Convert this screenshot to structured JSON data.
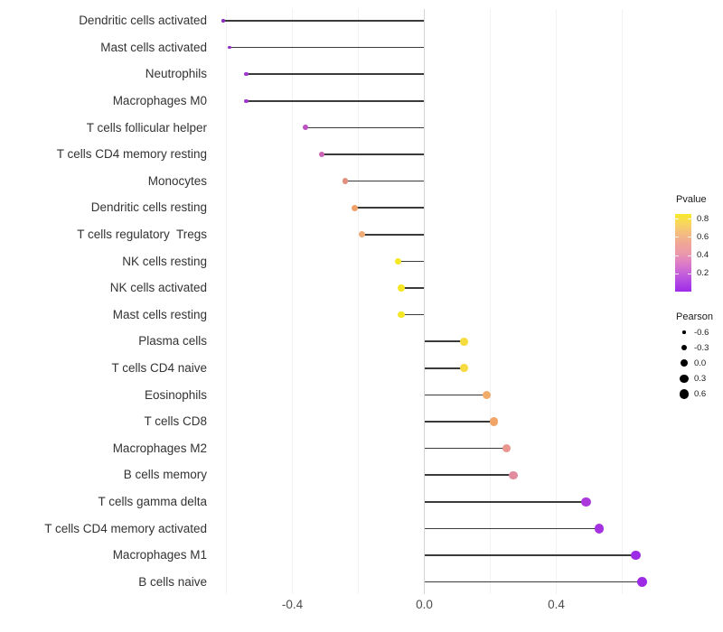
{
  "chart_data": {
    "type": "scatter",
    "variant": "horizontal-lollipop",
    "title": "",
    "xlabel": "",
    "ylabel": "",
    "xlim": [
      -0.637,
      0.681
    ],
    "x_tick_labels": [
      "-0.4",
      "0.0",
      "0.4"
    ],
    "x_tick_values": [
      -0.4,
      0.0,
      0.4
    ],
    "gridline_values": [
      -0.6,
      -0.4,
      -0.2,
      0.2,
      0.4,
      0.6
    ],
    "zero_line_value": 0,
    "categories": [
      "Dendritic cells activated",
      "Mast cells activated",
      "Neutrophils",
      "Macrophages M0",
      "T cells follicular helper",
      "T cells CD4 memory resting",
      "Monocytes",
      "Dendritic cells resting",
      "T cells regulatory  Tregs",
      "NK cells resting",
      "NK cells activated",
      "Mast cells resting",
      "Plasma cells",
      "T cells CD4 naive",
      "Eosinophils",
      "T cells CD8",
      "Macrophages M2",
      "B cells memory",
      "T cells gamma delta",
      "T cells CD4 memory activated",
      "Macrophages M1",
      "B cells naive"
    ],
    "series": [
      {
        "name": "Pearson correlation",
        "values": [
          -0.61,
          -0.59,
          -0.54,
          -0.54,
          -0.36,
          -0.31,
          -0.24,
          -0.21,
          -0.19,
          -0.08,
          -0.07,
          -0.07,
          0.12,
          0.12,
          0.19,
          0.21,
          0.25,
          0.27,
          0.49,
          0.53,
          0.64,
          0.66
        ],
        "point_colors": [
          "#8F2BBE",
          "#9230C4",
          "#9C38CE",
          "#9C38CE",
          "#BE52C4",
          "#C963B4",
          "#E28F80",
          "#EFA169",
          "#F0AC76",
          "#F6E723",
          "#F5E626",
          "#F5E626",
          "#F5DC3E",
          "#F5DA42",
          "#F2AC6A",
          "#F1A467",
          "#E9968E",
          "#E18C9E",
          "#AC39DC",
          "#A532E0",
          "#9D2BE5",
          "#9D2BE5"
        ]
      }
    ],
    "legend_position": "right",
    "grid": "vertical-only"
  },
  "legend_pvalue": {
    "title": "Pvalue",
    "tick_labels": [
      "0.8",
      "0.6",
      "0.4",
      "0.2"
    ],
    "tick_values": [
      0.8,
      0.6,
      0.4,
      0.2
    ],
    "bar_range": [
      0.85,
      0.0
    ],
    "gradient_top_to_bottom": [
      "#F9E929",
      "#F8D55F",
      "#F4BD80",
      "#F0A795",
      "#EC9AA9",
      "#DF7FC4",
      "#C964D8",
      "#B148E3",
      "#A02BE8"
    ]
  },
  "legend_pearson": {
    "title": "Pearson",
    "entry_labels": [
      "-0.6",
      "-0.3",
      "0.0",
      "0.3",
      "0.6"
    ],
    "entry_values": [
      -0.6,
      -0.3,
      0.0,
      0.3,
      0.6
    ],
    "dot_color": "#000000"
  },
  "style_colors": {
    "stem": "#3a3a3a",
    "zero_line": "#d5d5d5",
    "gridline": "#f2f2f2",
    "axis_tick_text": "#4d4d4d",
    "category_text": "#333333",
    "background": "#ffffff"
  }
}
